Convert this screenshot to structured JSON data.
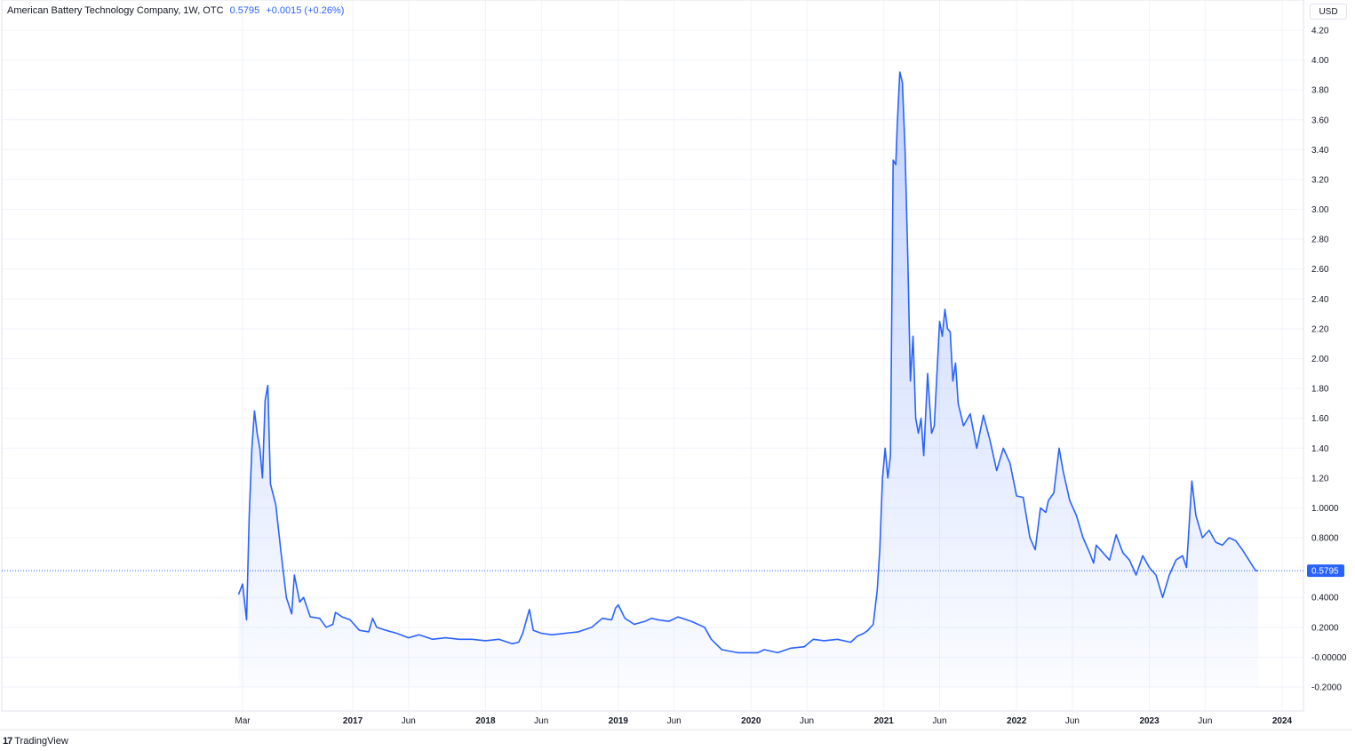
{
  "legend": {
    "title": "American Battery Technology Company, 1W, OTC",
    "price": "0.5795",
    "change": "+0.0015 (+0.26%)"
  },
  "currency_button": "USD",
  "branding": {
    "logo_text": "TradingView"
  },
  "colors": {
    "line": "#2962ff",
    "fill": "#2962ff",
    "grid": "#f0f3fa",
    "text": "#131722"
  },
  "chart_data": {
    "type": "area",
    "ylim": [
      -0.35,
      4.25
    ],
    "y_ticks": [
      "4.20",
      "4.00",
      "3.80",
      "3.60",
      "3.40",
      "3.20",
      "3.00",
      "2.80",
      "2.60",
      "2.40",
      "2.20",
      "2.00",
      "1.80",
      "1.60",
      "1.40",
      "1.20",
      "1.0000",
      "0.8000",
      "0.5795",
      "0.4000",
      "0.2000",
      "-0.00000",
      "-0.2000"
    ],
    "y_tick_values": [
      4.2,
      4.0,
      3.8,
      3.6,
      3.4,
      3.2,
      3.0,
      2.8,
      2.6,
      2.4,
      2.2,
      2.0,
      1.8,
      1.6,
      1.4,
      1.2,
      1.0,
      0.8,
      0.5795,
      0.4,
      0.2,
      0.0,
      -0.2
    ],
    "x_ticks": [
      {
        "label": "Mar",
        "date": 2016.17,
        "bold": false
      },
      {
        "label": "2017",
        "date": 2017.0,
        "bold": true
      },
      {
        "label": "Jun",
        "date": 2017.42,
        "bold": false
      },
      {
        "label": "2018",
        "date": 2018.0,
        "bold": true
      },
      {
        "label": "Jun",
        "date": 2018.42,
        "bold": false
      },
      {
        "label": "2019",
        "date": 2019.0,
        "bold": true
      },
      {
        "label": "Jun",
        "date": 2019.42,
        "bold": false
      },
      {
        "label": "2020",
        "date": 2020.0,
        "bold": true
      },
      {
        "label": "Jun",
        "date": 2020.42,
        "bold": false
      },
      {
        "label": "2021",
        "date": 2021.0,
        "bold": true
      },
      {
        "label": "Jun",
        "date": 2021.42,
        "bold": false
      },
      {
        "label": "2022",
        "date": 2022.0,
        "bold": true
      },
      {
        "label": "Jun",
        "date": 2022.42,
        "bold": false
      },
      {
        "label": "2023",
        "date": 2023.0,
        "bold": true
      },
      {
        "label": "Jun",
        "date": 2023.42,
        "bold": false
      },
      {
        "label": "2024",
        "date": 2024.0,
        "bold": true
      }
    ],
    "last_price": 0.5795,
    "series": [
      {
        "points": [
          [
            2016.14,
            0.42
          ],
          [
            2016.17,
            0.49
          ],
          [
            2016.2,
            0.25
          ],
          [
            2016.22,
            0.95
          ],
          [
            2016.24,
            1.4
          ],
          [
            2016.26,
            1.65
          ],
          [
            2016.28,
            1.5
          ],
          [
            2016.3,
            1.4
          ],
          [
            2016.32,
            1.2
          ],
          [
            2016.34,
            1.72
          ],
          [
            2016.36,
            1.82
          ],
          [
            2016.38,
            1.16
          ],
          [
            2016.42,
            1.02
          ],
          [
            2016.46,
            0.7
          ],
          [
            2016.5,
            0.4
          ],
          [
            2016.54,
            0.29
          ],
          [
            2016.56,
            0.55
          ],
          [
            2016.6,
            0.37
          ],
          [
            2016.63,
            0.4
          ],
          [
            2016.68,
            0.27
          ],
          [
            2016.75,
            0.26
          ],
          [
            2016.8,
            0.2
          ],
          [
            2016.85,
            0.22
          ],
          [
            2016.87,
            0.3
          ],
          [
            2016.92,
            0.27
          ],
          [
            2016.98,
            0.25
          ],
          [
            2017.05,
            0.18
          ],
          [
            2017.12,
            0.17
          ],
          [
            2017.15,
            0.26
          ],
          [
            2017.18,
            0.2
          ],
          [
            2017.25,
            0.18
          ],
          [
            2017.33,
            0.16
          ],
          [
            2017.42,
            0.13
          ],
          [
            2017.5,
            0.15
          ],
          [
            2017.6,
            0.12
          ],
          [
            2017.7,
            0.13
          ],
          [
            2017.8,
            0.12
          ],
          [
            2017.9,
            0.12
          ],
          [
            2018.0,
            0.11
          ],
          [
            2018.1,
            0.12
          ],
          [
            2018.2,
            0.09
          ],
          [
            2018.25,
            0.1
          ],
          [
            2018.28,
            0.16
          ],
          [
            2018.33,
            0.32
          ],
          [
            2018.36,
            0.18
          ],
          [
            2018.42,
            0.16
          ],
          [
            2018.5,
            0.15
          ],
          [
            2018.6,
            0.16
          ],
          [
            2018.7,
            0.17
          ],
          [
            2018.8,
            0.2
          ],
          [
            2018.88,
            0.26
          ],
          [
            2018.95,
            0.25
          ],
          [
            2018.98,
            0.33
          ],
          [
            2019.0,
            0.35
          ],
          [
            2019.05,
            0.26
          ],
          [
            2019.12,
            0.22
          ],
          [
            2019.2,
            0.24
          ],
          [
            2019.25,
            0.26
          ],
          [
            2019.3,
            0.25
          ],
          [
            2019.38,
            0.24
          ],
          [
            2019.45,
            0.27
          ],
          [
            2019.55,
            0.24
          ],
          [
            2019.65,
            0.2
          ],
          [
            2019.7,
            0.12
          ],
          [
            2019.78,
            0.05
          ],
          [
            2019.9,
            0.03
          ],
          [
            2020.0,
            0.03
          ],
          [
            2020.05,
            0.03
          ],
          [
            2020.1,
            0.05
          ],
          [
            2020.2,
            0.03
          ],
          [
            2020.3,
            0.06
          ],
          [
            2020.4,
            0.07
          ],
          [
            2020.47,
            0.12
          ],
          [
            2020.55,
            0.11
          ],
          [
            2020.65,
            0.12
          ],
          [
            2020.75,
            0.1
          ],
          [
            2020.8,
            0.14
          ],
          [
            2020.85,
            0.16
          ],
          [
            2020.88,
            0.18
          ],
          [
            2020.92,
            0.22
          ],
          [
            2020.95,
            0.45
          ],
          [
            2020.97,
            0.72
          ],
          [
            2020.99,
            1.2
          ],
          [
            2021.01,
            1.4
          ],
          [
            2021.03,
            1.2
          ],
          [
            2021.05,
            1.35
          ],
          [
            2021.07,
            3.33
          ],
          [
            2021.09,
            3.3
          ],
          [
            2021.1,
            3.55
          ],
          [
            2021.12,
            3.92
          ],
          [
            2021.14,
            3.85
          ],
          [
            2021.16,
            3.4
          ],
          [
            2021.18,
            2.7
          ],
          [
            2021.2,
            1.85
          ],
          [
            2021.22,
            2.15
          ],
          [
            2021.24,
            1.6
          ],
          [
            2021.26,
            1.5
          ],
          [
            2021.28,
            1.6
          ],
          [
            2021.3,
            1.35
          ],
          [
            2021.33,
            1.9
          ],
          [
            2021.36,
            1.5
          ],
          [
            2021.38,
            1.55
          ],
          [
            2021.4,
            1.9
          ],
          [
            2021.42,
            2.25
          ],
          [
            2021.44,
            2.15
          ],
          [
            2021.46,
            2.33
          ],
          [
            2021.48,
            2.2
          ],
          [
            2021.5,
            2.18
          ],
          [
            2021.52,
            1.85
          ],
          [
            2021.54,
            1.97
          ],
          [
            2021.56,
            1.7
          ],
          [
            2021.6,
            1.55
          ],
          [
            2021.65,
            1.63
          ],
          [
            2021.7,
            1.4
          ],
          [
            2021.75,
            1.62
          ],
          [
            2021.8,
            1.45
          ],
          [
            2021.85,
            1.25
          ],
          [
            2021.9,
            1.4
          ],
          [
            2021.95,
            1.3
          ],
          [
            2022.0,
            1.08
          ],
          [
            2022.05,
            1.07
          ],
          [
            2022.1,
            0.8
          ],
          [
            2022.14,
            0.72
          ],
          [
            2022.18,
            1.0
          ],
          [
            2022.22,
            0.97
          ],
          [
            2022.24,
            1.05
          ],
          [
            2022.28,
            1.1
          ],
          [
            2022.32,
            1.4
          ],
          [
            2022.35,
            1.25
          ],
          [
            2022.4,
            1.05
          ],
          [
            2022.45,
            0.95
          ],
          [
            2022.5,
            0.8
          ],
          [
            2022.55,
            0.7
          ],
          [
            2022.58,
            0.63
          ],
          [
            2022.6,
            0.75
          ],
          [
            2022.65,
            0.7
          ],
          [
            2022.7,
            0.65
          ],
          [
            2022.75,
            0.82
          ],
          [
            2022.8,
            0.7
          ],
          [
            2022.85,
            0.65
          ],
          [
            2022.9,
            0.55
          ],
          [
            2022.95,
            0.68
          ],
          [
            2023.0,
            0.6
          ],
          [
            2023.05,
            0.55
          ],
          [
            2023.1,
            0.4
          ],
          [
            2023.15,
            0.55
          ],
          [
            2023.2,
            0.65
          ],
          [
            2023.25,
            0.68
          ],
          [
            2023.28,
            0.6
          ],
          [
            2023.32,
            1.18
          ],
          [
            2023.35,
            0.95
          ],
          [
            2023.4,
            0.8
          ],
          [
            2023.45,
            0.85
          ],
          [
            2023.5,
            0.77
          ],
          [
            2023.55,
            0.75
          ],
          [
            2023.6,
            0.8
          ],
          [
            2023.65,
            0.78
          ],
          [
            2023.7,
            0.72
          ],
          [
            2023.75,
            0.65
          ],
          [
            2023.8,
            0.58
          ],
          [
            2023.82,
            0.5795
          ]
        ]
      }
    ]
  }
}
